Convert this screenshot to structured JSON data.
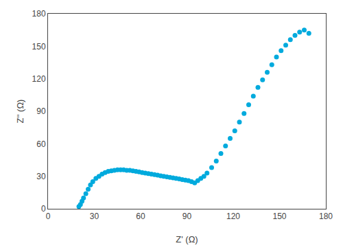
{
  "chart_data": {
    "type": "scatter",
    "x": [
      20,
      21,
      22,
      23,
      24.5,
      26,
      27.5,
      29,
      31,
      33,
      35,
      37,
      39,
      41,
      43,
      45,
      47,
      49,
      51,
      53,
      55,
      57,
      59,
      61,
      63,
      65,
      67,
      69,
      71,
      73,
      75,
      77,
      79,
      81,
      83,
      85,
      87,
      89,
      91,
      93,
      95,
      97,
      99,
      101,
      103,
      106,
      109,
      112,
      115,
      118,
      121,
      124,
      127,
      130,
      133,
      136,
      139,
      142,
      145,
      148,
      151,
      154,
      157,
      160,
      163,
      166,
      169
    ],
    "values": [
      2,
      4,
      7,
      10,
      14,
      18,
      22,
      25,
      28,
      30,
      32,
      33.5,
      34.5,
      35,
      35.5,
      36,
      36,
      36,
      35.5,
      35.5,
      35,
      34.5,
      34,
      33.5,
      33,
      32.5,
      32,
      31.5,
      31,
      30.5,
      30,
      29.5,
      29,
      28.5,
      28,
      27.5,
      27,
      26.5,
      26,
      25,
      24,
      26,
      28,
      30,
      33,
      38,
      44,
      51,
      58,
      65,
      72,
      80,
      88,
      96,
      104,
      112,
      119,
      126,
      133,
      140,
      146,
      151,
      156,
      160,
      163,
      165,
      162
    ],
    "color": "#00AADD",
    "xlabel": "Z' (Ω)",
    "ylabel": "Z'' (Ω)",
    "xlim": [
      0,
      180
    ],
    "ylim": [
      0,
      180
    ],
    "xticks": [
      0,
      30,
      60,
      90,
      120,
      150,
      180
    ],
    "yticks": [
      0,
      30,
      60,
      90,
      120,
      150,
      180
    ],
    "grid": false
  }
}
